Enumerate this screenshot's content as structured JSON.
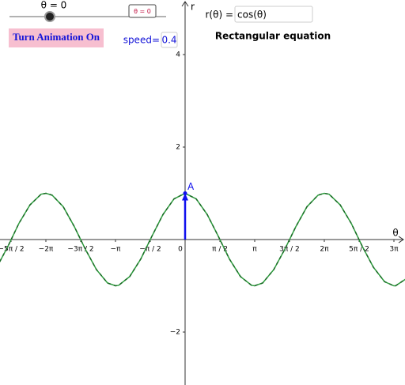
{
  "slider": {
    "label": "θ = 0"
  },
  "reset_button": {
    "label": "θ = 0"
  },
  "animation_button": {
    "label": "Turn Animation On"
  },
  "speed": {
    "label": "speed=",
    "value": "0.4"
  },
  "equation": {
    "label": "r(θ) =",
    "value": "cos(θ)",
    "caption": "Rectangular equation"
  },
  "chart_data": {
    "type": "line",
    "x_label": "θ",
    "y_label": "r",
    "xlim": [
      -8.354,
      9.925
    ],
    "ylim": [
      -3.145,
      5.18
    ],
    "xticks": [
      {
        "value": -7.854,
        "label": "−5π / 2"
      },
      {
        "value": -6.283,
        "label": "−2π"
      },
      {
        "value": -4.712,
        "label": "−3π / 2"
      },
      {
        "value": -3.142,
        "label": "−π"
      },
      {
        "value": -1.571,
        "label": "−π / 2"
      },
      0,
      {
        "value": 1.571,
        "label": "π / 2"
      },
      {
        "value": 3.142,
        "label": "π"
      },
      {
        "value": 4.712,
        "label": "3π / 2"
      },
      {
        "value": 6.283,
        "label": "2π"
      },
      {
        "value": 7.854,
        "label": "5π / 2"
      },
      {
        "value": 9.425,
        "label": "3π"
      }
    ],
    "yticks": [
      {
        "value": -2,
        "label": "−2"
      },
      2,
      4
    ],
    "series": [
      {
        "name": "r(θ)",
        "color": "#2e9e3e",
        "x": [
          -8.5,
          -8,
          -7.5,
          -7,
          -6.5,
          -6.28,
          -6,
          -5.5,
          -5,
          -4.5,
          -4,
          -3.5,
          -3.14,
          -3,
          -2.5,
          -2,
          -1.5,
          -1,
          -0.5,
          0,
          0.5,
          1,
          1.5,
          2,
          2.5,
          3,
          3.14,
          3.5,
          4,
          4.5,
          5,
          5.5,
          6,
          6.28,
          6.5,
          7,
          7.5,
          8,
          8.5,
          9,
          9.42,
          9.5,
          10
        ],
        "values": [
          -0.6,
          -0.15,
          0.35,
          0.75,
          0.98,
          1,
          0.96,
          0.71,
          0.28,
          -0.21,
          -0.65,
          -0.94,
          -1,
          -0.99,
          -0.8,
          -0.42,
          0.07,
          0.54,
          0.88,
          1,
          0.88,
          0.54,
          0.07,
          -0.42,
          -0.8,
          -0.99,
          -1,
          -0.94,
          -0.65,
          -0.21,
          0.28,
          0.71,
          0.96,
          1,
          0.98,
          0.75,
          0.35,
          -0.15,
          -0.6,
          -0.91,
          -1,
          -1,
          -0.84
        ]
      }
    ],
    "point": {
      "label": "A",
      "x": 0,
      "y": 1,
      "color": "#1010ee"
    }
  }
}
